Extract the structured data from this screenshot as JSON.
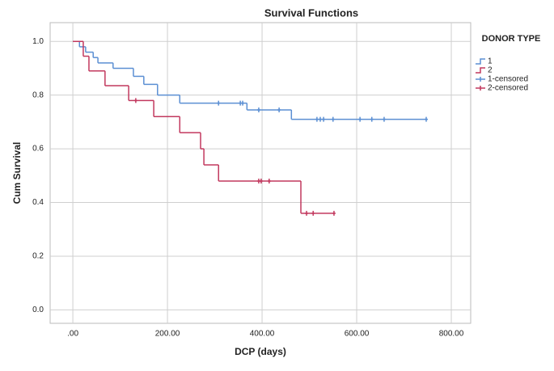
{
  "chart_data": {
    "type": "survival",
    "title": "Survival Functions",
    "x_label": "DCP (days)",
    "y_label": "Cum Survival",
    "legend_title": "DONOR TYPE",
    "xlim": [
      -48,
      841
    ],
    "ylim": [
      -0.05,
      1.07
    ],
    "xticks": [
      {
        "value": 0,
        "label": ".00"
      },
      {
        "value": 200,
        "label": "200.00"
      },
      {
        "value": 400,
        "label": "400.00"
      },
      {
        "value": 600,
        "label": "600.00"
      },
      {
        "value": 800,
        "label": "800.00"
      }
    ],
    "yticks": [
      {
        "value": 0,
        "label": "0.0"
      },
      0.2,
      0.4,
      0.6,
      0.8,
      {
        "value": 1,
        "label": "1.0"
      }
    ],
    "grid": true,
    "series": [
      {
        "name": "1",
        "kind": "step",
        "color": "#5b8fd3",
        "x": [
          0,
          14,
          27,
          43,
          53,
          85,
          128,
          150,
          179,
          226,
          368,
          462,
          747
        ],
        "values": [
          1.0,
          0.98,
          0.96,
          0.94,
          0.92,
          0.9,
          0.87,
          0.84,
          0.8,
          0.77,
          0.745,
          0.71,
          0.71
        ]
      },
      {
        "name": "2",
        "kind": "step",
        "color": "#c2385e",
        "x": [
          0,
          22,
          34,
          68,
          118,
          171,
          226,
          270,
          277,
          308,
          482,
          552
        ],
        "values": [
          1.0,
          0.945,
          0.89,
          0.835,
          0.78,
          0.72,
          0.66,
          0.6,
          0.54,
          0.48,
          0.36,
          0.36
        ]
      },
      {
        "name": "1-censored",
        "kind": "censored",
        "color": "#5b8fd3",
        "x": [
          308,
          354,
          359,
          393,
          436,
          516,
          523,
          530,
          550,
          607,
          632,
          658,
          747
        ],
        "values": [
          0.77,
          0.77,
          0.77,
          0.745,
          0.745,
          0.71,
          0.71,
          0.71,
          0.71,
          0.71,
          0.71,
          0.71,
          0.71
        ]
      },
      {
        "name": "2-censored",
        "kind": "censored",
        "color": "#c2385e",
        "x": [
          133,
          393,
          398,
          415,
          494,
          508,
          552
        ],
        "values": [
          0.78,
          0.48,
          0.48,
          0.48,
          0.36,
          0.36,
          0.36
        ]
      }
    ]
  }
}
